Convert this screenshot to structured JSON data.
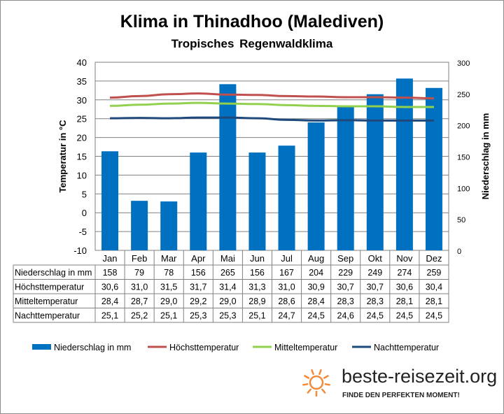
{
  "chart_data": {
    "type": "bar+line",
    "title": "Klima in Thinadhoo (Malediven)",
    "subtitle": "Tropisches Regenwaldklima",
    "ylabel": "Temperatur in °C",
    "y2label": "Niederschlag in mm",
    "ylim": [
      -10,
      40
    ],
    "y2lim": [
      0,
      300
    ],
    "yticks": [
      "-10",
      "-5",
      "0",
      "5",
      "10",
      "15",
      "20",
      "25",
      "30",
      "35",
      "40"
    ],
    "y2ticks": [
      "0",
      "50",
      "100",
      "150",
      "200",
      "250",
      "300"
    ],
    "categories": [
      "Jan",
      "Feb",
      "Mar",
      "Apr",
      "Mai",
      "Jun",
      "Jul",
      "Aug",
      "Sep",
      "Okt",
      "Nov",
      "Dez"
    ],
    "series": [
      {
        "name": "Niederschlag in mm",
        "type": "bar",
        "axis": "right",
        "color": "#0070c0",
        "values": [
          158,
          79,
          78,
          156,
          265,
          156,
          167,
          204,
          229,
          249,
          274,
          259
        ],
        "labels": [
          "158",
          "79",
          "78",
          "156",
          "265",
          "156",
          "167",
          "204",
          "229",
          "249",
          "274",
          "259"
        ]
      },
      {
        "name": "Höchsttemperatur",
        "type": "line",
        "axis": "left",
        "color": "#c0504d",
        "values": [
          30.6,
          31.0,
          31.5,
          31.7,
          31.4,
          31.3,
          31.0,
          30.9,
          30.7,
          30.7,
          30.6,
          30.4
        ],
        "labels": [
          "30,6",
          "31,0",
          "31,5",
          "31,7",
          "31,4",
          "31,3",
          "31,0",
          "30,9",
          "30,7",
          "30,7",
          "30,6",
          "30,4"
        ]
      },
      {
        "name": "Mitteltemperatur",
        "type": "line",
        "axis": "left",
        "color": "#92d050",
        "values": [
          28.4,
          28.7,
          29.0,
          29.2,
          29.0,
          28.9,
          28.6,
          28.4,
          28.3,
          28.3,
          28.1,
          28.1
        ],
        "labels": [
          "28,4",
          "28,7",
          "29,0",
          "29,2",
          "29,0",
          "28,9",
          "28,6",
          "28,4",
          "28,3",
          "28,3",
          "28,1",
          "28,1"
        ]
      },
      {
        "name": "Nachttemperatur",
        "type": "line",
        "axis": "left",
        "color": "#1f497d",
        "values": [
          25.1,
          25.2,
          25.1,
          25.3,
          25.3,
          25.1,
          24.7,
          24.5,
          24.6,
          24.5,
          24.5,
          24.5
        ],
        "labels": [
          "25,1",
          "25,2",
          "25,1",
          "25,3",
          "25,3",
          "25,1",
          "24,7",
          "24,5",
          "24,6",
          "24,5",
          "24,5",
          "24,5"
        ]
      }
    ],
    "grid": true,
    "legend": "bottom"
  },
  "logo": {
    "name": "beste-reisezeit.org",
    "tagline": "FINDE DEN PERFEKTEN MOMENT!"
  }
}
